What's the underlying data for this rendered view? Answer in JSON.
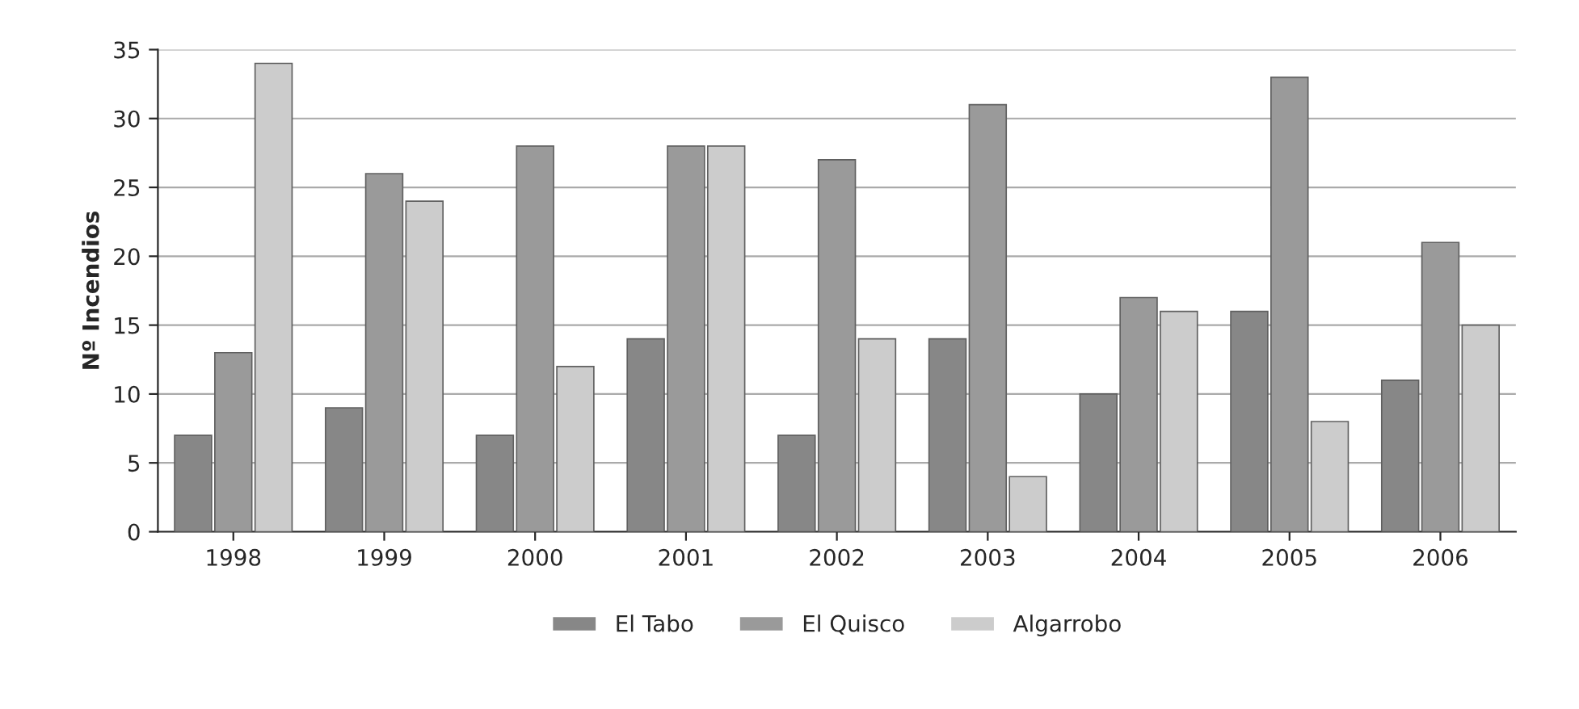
{
  "chart_data": {
    "type": "bar",
    "ylabel": "Nº Incendios",
    "categories": [
      "1998",
      "1999",
      "2000",
      "2001",
      "2002",
      "2003",
      "2004",
      "2005",
      "2006"
    ],
    "series": [
      {
        "name": "El Tabo",
        "color": "#878787",
        "values": [
          7,
          9,
          7,
          14,
          7,
          14,
          10,
          16,
          11
        ]
      },
      {
        "name": "El Quisco",
        "color": "#9a9a9a",
        "values": [
          13,
          26,
          28,
          28,
          27,
          31,
          17,
          33,
          21
        ]
      },
      {
        "name": "Algarrobo",
        "color": "#cccccc",
        "values": [
          34,
          24,
          12,
          28,
          14,
          4,
          16,
          8,
          15
        ]
      }
    ],
    "ylim": [
      0,
      35
    ],
    "yticks": [
      0,
      5,
      10,
      15,
      20,
      25,
      30,
      35
    ],
    "grid": "y",
    "legend": "bottom"
  }
}
